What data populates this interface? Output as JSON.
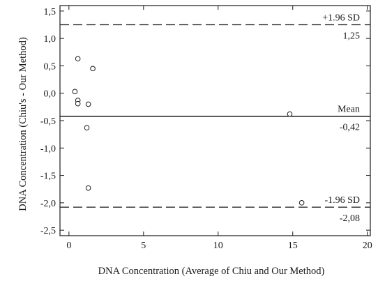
{
  "chart_data": {
    "type": "scatter",
    "title": "",
    "xlabel": "DNA Concentration (Average of Chiu and Our Method)",
    "ylabel": "DNA Concentration (Chiu's - Our Method)",
    "xlim": [
      -0.6,
      20.2
    ],
    "ylim": [
      -2.6,
      1.6
    ],
    "x_ticks": [
      0,
      5,
      10,
      15,
      20
    ],
    "x_tick_labels": [
      "0",
      "5",
      "10",
      "15",
      "20"
    ],
    "y_ticks": [
      1.5,
      1.0,
      0.5,
      0.0,
      -0.5,
      -1.0,
      -1.5,
      -2.0,
      -2.5
    ],
    "y_tick_labels": [
      "1,5",
      "1,0",
      "0,5",
      "0,0",
      "-0,5",
      "-1,0",
      "-1,5",
      "-2,0",
      "-2,5"
    ],
    "grid": false,
    "points": [
      {
        "x": 0.6,
        "y": 0.63
      },
      {
        "x": 1.6,
        "y": 0.45
      },
      {
        "x": 0.4,
        "y": 0.03
      },
      {
        "x": 0.6,
        "y": -0.13
      },
      {
        "x": 0.6,
        "y": -0.19
      },
      {
        "x": 1.3,
        "y": -0.2
      },
      {
        "x": 1.2,
        "y": -0.63
      },
      {
        "x": 14.8,
        "y": -0.38
      },
      {
        "x": 1.3,
        "y": -1.73
      },
      {
        "x": 15.6,
        "y": -2.0
      }
    ],
    "reference_lines": [
      {
        "label": "+1.96 SD",
        "value": 1.25,
        "value_label": "1,25",
        "style": "dashed"
      },
      {
        "label": "Mean",
        "value": -0.42,
        "value_label": "-0,42",
        "style": "solid"
      },
      {
        "label": "-1.96 SD",
        "value": -2.08,
        "value_label": "-2,08",
        "style": "dashed"
      }
    ],
    "colors": {
      "axis": "#1a1a1a",
      "line": "#1a1a1a",
      "marker": "#1a1a1a"
    }
  }
}
